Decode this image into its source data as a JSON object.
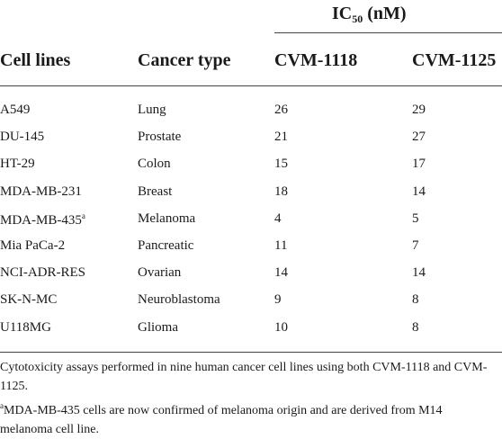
{
  "table": {
    "group_header": {
      "text": "IC",
      "sub": "50",
      "suffix": "(nM)"
    },
    "columns": [
      "Cell lines",
      "Cancer type",
      "CVM-1118",
      "CVM-1125"
    ],
    "rows": [
      [
        "A549",
        "Lung",
        26,
        29
      ],
      [
        "DU-145",
        "Prostate",
        21,
        27
      ],
      [
        "HT-29",
        "Colon",
        15,
        17
      ],
      [
        "MDA-MB-231",
        "Breast",
        18,
        14
      ],
      [
        {
          "text": "MDA-MB-435",
          "sup": "a"
        },
        "Melanoma",
        4,
        5
      ],
      [
        "Mia PaCa-2",
        "Pancreatic",
        11,
        7
      ],
      [
        "NCI-ADR-RES",
        "Ovarian",
        14,
        14
      ],
      [
        "SK-N-MC",
        "Neuroblastoma",
        9,
        8
      ],
      [
        "U118MG",
        "Glioma",
        10,
        8
      ]
    ]
  },
  "footnotes": [
    {
      "text": "Cytotoxicity assays performed in nine human cancer cell lines using both CVM-1118 and CVM-1125."
    },
    {
      "sup": "a",
      "text": "MDA-MB-435 cells are now confirmed of melanoma origin and are derived from M14 melanoma cell line."
    }
  ]
}
